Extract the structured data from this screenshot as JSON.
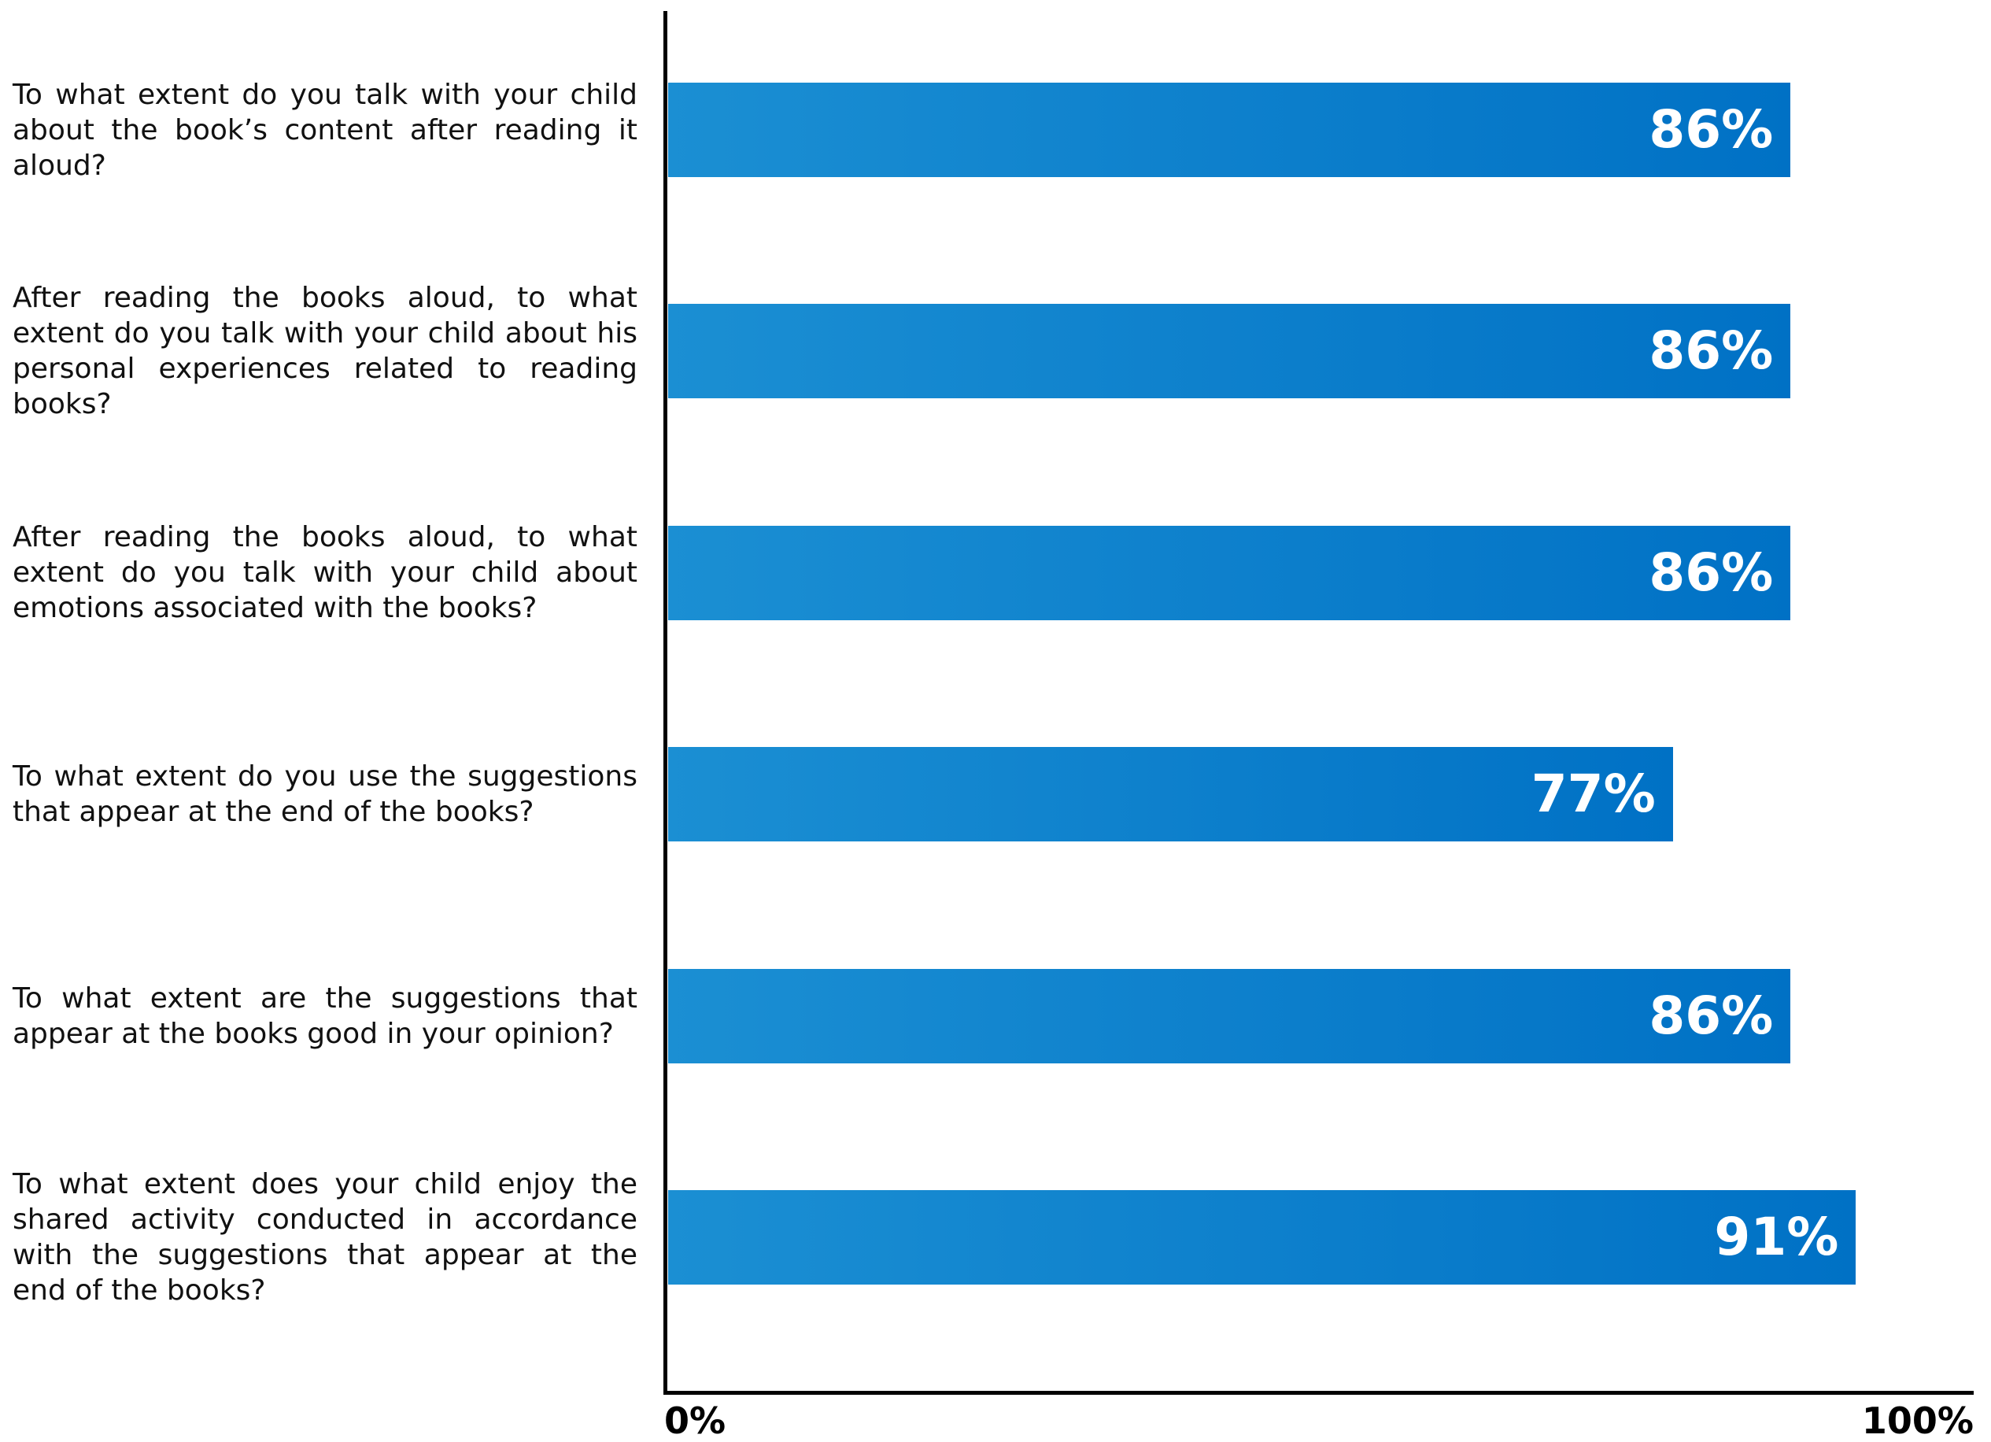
{
  "colors": {
    "bar_start": "#1b8fd3",
    "bar_end": "#0071c5",
    "bar_text": "#ffffff",
    "axis": "#000000",
    "label_text": "#111111"
  },
  "chart_data": {
    "type": "bar",
    "orientation": "horizontal",
    "categories": [
      "To what extent do you talk with your child about the book’s content after reading it aloud?",
      "After reading the books aloud, to what extent do you talk with your child about his personal experiences related to reading books?",
      "After reading the books aloud, to what extent do you talk with your child about emotions associated with the books?",
      "To what extent do you use the suggestions that appear at the end of the books?",
      "To what extent are the suggestions that appear at the books good in your opinion?",
      "To what extent does your child enjoy the shared activity conducted in accordance with the suggestions that appear at the end of the books?"
    ],
    "values": [
      86,
      86,
      86,
      77,
      86,
      91
    ],
    "value_labels": [
      "86%",
      "86%",
      "86%",
      "77%",
      "86%",
      "91%"
    ],
    "xlim": [
      0,
      100
    ],
    "x_tick_labels": [
      "0%",
      "100%"
    ],
    "title": "",
    "xlabel": "",
    "ylabel": "",
    "grid": false,
    "legend": "none"
  }
}
